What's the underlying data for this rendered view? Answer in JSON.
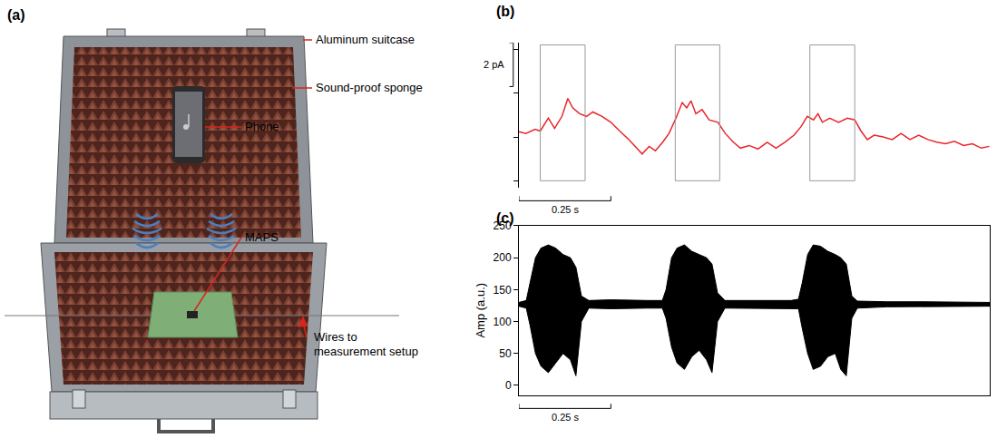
{
  "diagram": {
    "panel_label": "(a)",
    "labels": {
      "suitcase": "Aluminum suitcase",
      "sponge": "Sound-proof sponge",
      "phone": "Phone",
      "maps": "MAPS",
      "wires": "Wires to measurement setup"
    }
  },
  "chart_data": [
    {
      "panel_label": "(b)",
      "type": "line",
      "color": "#e8262b",
      "x": [
        0,
        0.019,
        0.044,
        0.058,
        0.08,
        0.097,
        0.117,
        0.133,
        0.146,
        0.165,
        0.184,
        0.201,
        0.226,
        0.25,
        0.274,
        0.299,
        0.318,
        0.335,
        0.354,
        0.371,
        0.391,
        0.408,
        0.427,
        0.444,
        0.456,
        0.468,
        0.481,
        0.498,
        0.517,
        0.541,
        0.561,
        0.583,
        0.602,
        0.626,
        0.65,
        0.675,
        0.699,
        0.723,
        0.748,
        0.767,
        0.784,
        0.801,
        0.813,
        0.825,
        0.845,
        0.869,
        0.893,
        0.913,
        0.93,
        0.947,
        0.966,
        0.99,
        1.015,
        1.039,
        1.063,
        1.087,
        1.112,
        1.136,
        1.16,
        1.184,
        1.209,
        1.233,
        1.257,
        1.279
      ],
      "values": [
        2.24,
        2.16,
        2.35,
        2.27,
        2.86,
        2.39,
        2.94,
        3.76,
        3.33,
        3.06,
        2.94,
        3.14,
        2.94,
        2.67,
        2.27,
        1.88,
        1.53,
        1.22,
        1.57,
        1.37,
        1.76,
        2.16,
        2.86,
        3.57,
        3.33,
        3.65,
        3.06,
        3.25,
        2.78,
        2.67,
        2.16,
        1.76,
        1.49,
        1.61,
        1.45,
        1.76,
        1.49,
        1.76,
        2.08,
        2.47,
        2.94,
        2.78,
        3.06,
        2.67,
        2.86,
        2.67,
        2.86,
        2.78,
        2.27,
        1.88,
        2.08,
        2.0,
        1.88,
        2.16,
        1.88,
        2.08,
        1.88,
        1.76,
        1.69,
        1.8,
        1.61,
        1.69,
        1.49,
        1.57
      ],
      "xlim": [
        0,
        1.28
      ],
      "ylim": [
        -0.3,
        6.3
      ],
      "yticks": [
        0,
        2,
        4,
        6
      ],
      "tick_labels": false,
      "boxes": [
        {
          "x": [
            0.058,
            0.18
          ],
          "y": [
            0,
            6.2
          ]
        },
        {
          "x": [
            0.425,
            0.546
          ],
          "y": [
            0,
            6.2
          ]
        },
        {
          "x": [
            0.791,
            0.913
          ],
          "y": [
            0,
            6.2
          ]
        }
      ],
      "scale_bars": [
        {
          "axis": "y",
          "value": 2,
          "label": "2 pA"
        },
        {
          "axis": "x",
          "value": 0.25,
          "label": "0.25 s"
        }
      ]
    },
    {
      "panel_label": "(c)",
      "type": "band",
      "color": "#000000",
      "ylabel": "Amp (a.u.)",
      "x": [
        0,
        0.02,
        0.03,
        0.045,
        0.06,
        0.08,
        0.1,
        0.12,
        0.14,
        0.155,
        0.17,
        0.19,
        0.25,
        0.3,
        0.35,
        0.39,
        0.4,
        0.415,
        0.43,
        0.45,
        0.47,
        0.49,
        0.51,
        0.525,
        0.54,
        0.56,
        0.65,
        0.74,
        0.76,
        0.77,
        0.785,
        0.8,
        0.82,
        0.84,
        0.86,
        0.875,
        0.89,
        0.905,
        0.92,
        1.0,
        1.1,
        1.2,
        1.28
      ],
      "upper": [
        130,
        133,
        160,
        200,
        215,
        220,
        215,
        205,
        200,
        185,
        140,
        133,
        134,
        133,
        133,
        133,
        150,
        200,
        215,
        220,
        210,
        205,
        200,
        190,
        145,
        133,
        133,
        133,
        135,
        160,
        205,
        220,
        218,
        210,
        205,
        200,
        190,
        140,
        132,
        131,
        131,
        130,
        130
      ],
      "lower": [
        124,
        121,
        95,
        50,
        30,
        20,
        35,
        50,
        40,
        15,
        100,
        121,
        120,
        121,
        121,
        121,
        105,
        60,
        35,
        25,
        45,
        55,
        40,
        20,
        100,
        121,
        121,
        121,
        120,
        90,
        50,
        25,
        30,
        45,
        50,
        25,
        15,
        105,
        121,
        123,
        123,
        124,
        124
      ],
      "xlim": [
        0,
        1.28
      ],
      "ylim": [
        -15,
        250
      ],
      "yticks": [
        0,
        50,
        100,
        150,
        200,
        250
      ],
      "tick_labels": "y",
      "scale_bars": [
        {
          "axis": "x",
          "value": 0.25,
          "label": "0.25 s"
        }
      ]
    }
  ]
}
